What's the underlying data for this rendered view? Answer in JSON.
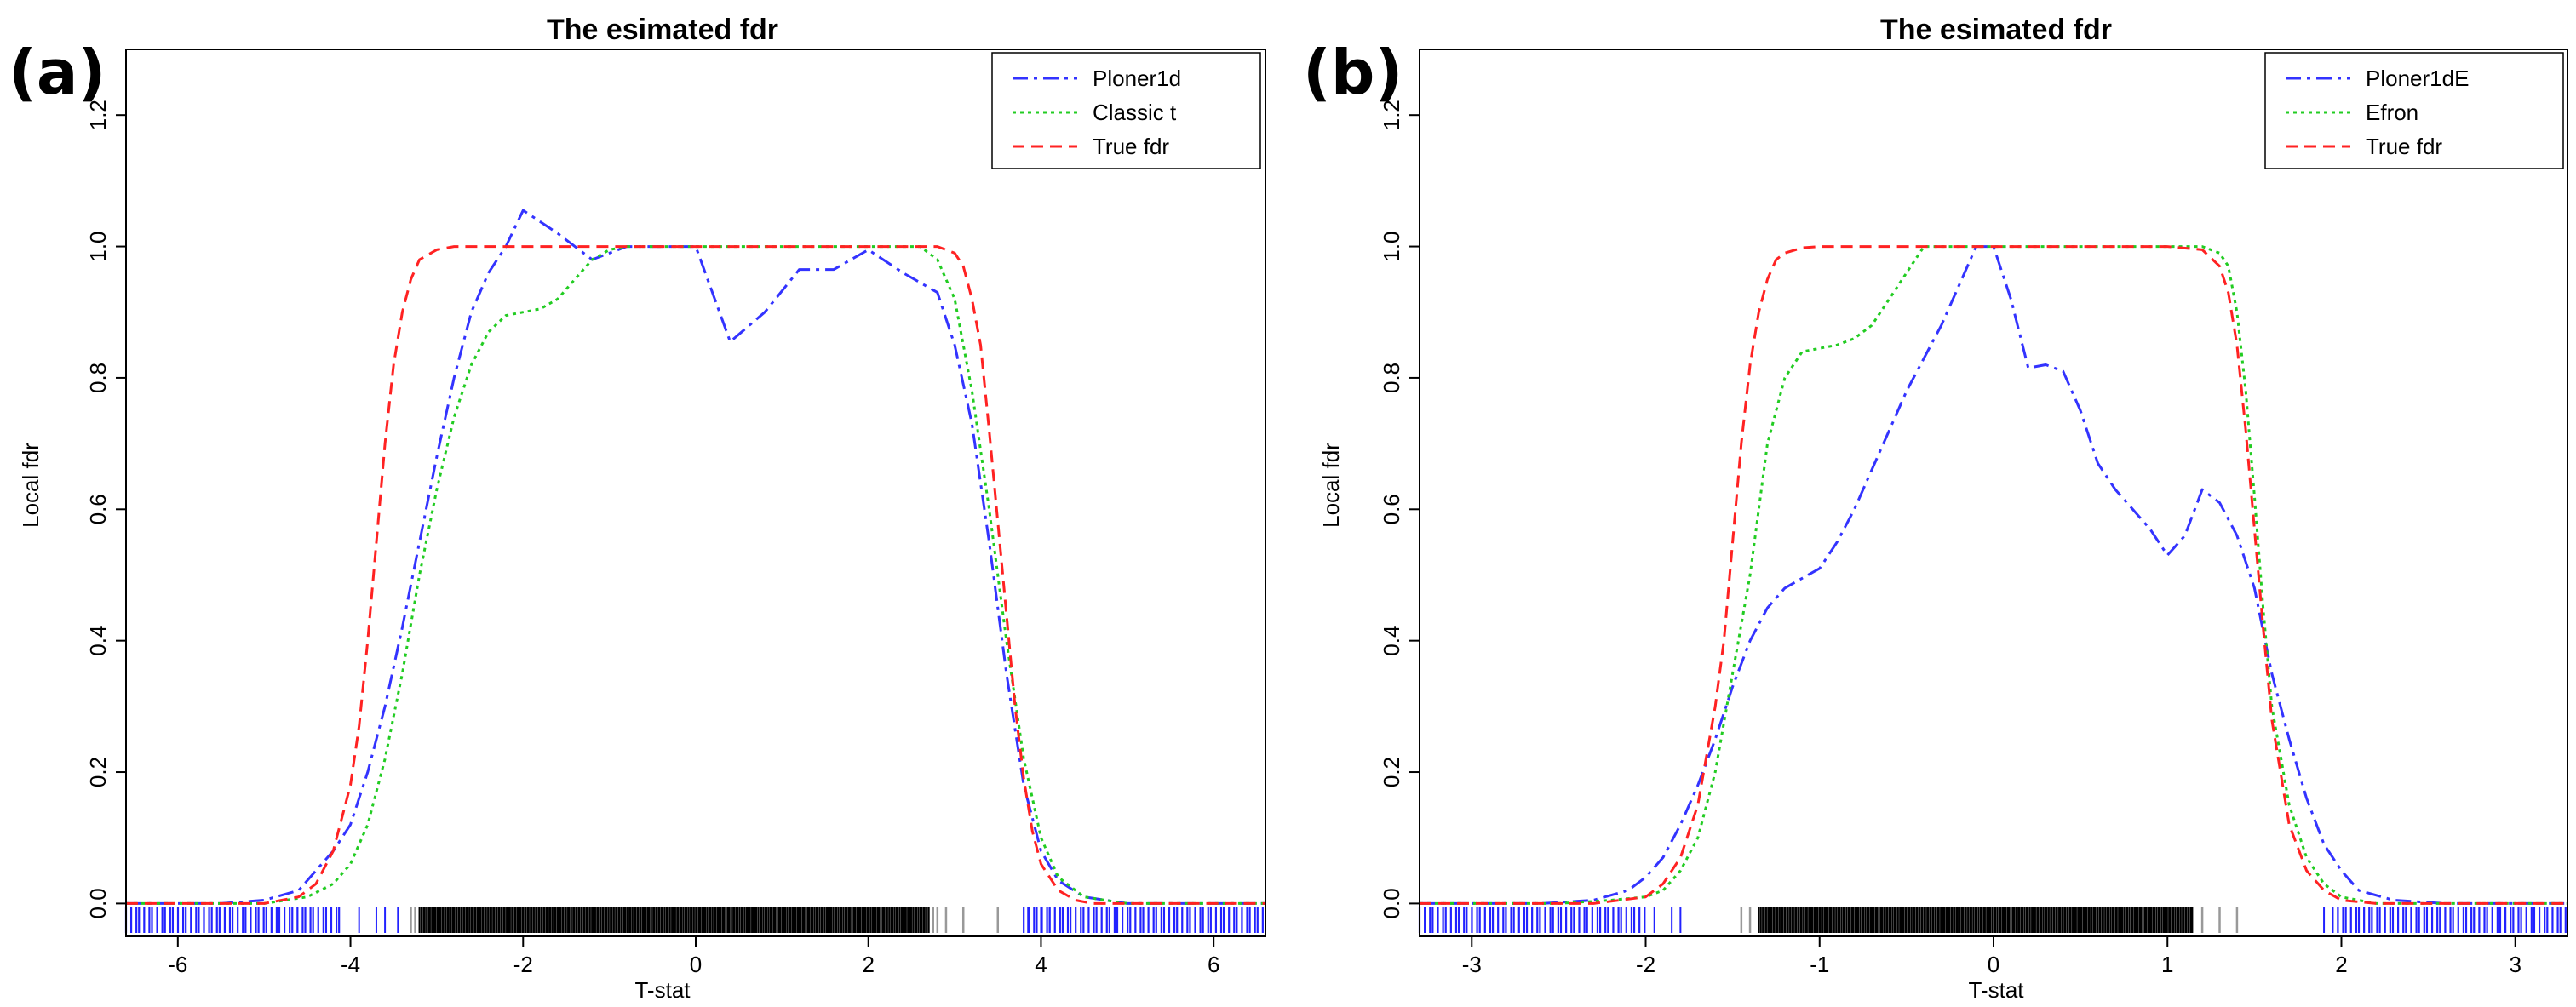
{
  "chart_data": [
    {
      "panel_label": "(a)",
      "type": "line",
      "title": "The esimated fdr",
      "xlabel": "T-stat",
      "ylabel": "Local fdr",
      "xlim": [
        -6.6,
        6.6
      ],
      "ylim": [
        -0.05,
        1.3
      ],
      "xticks": [
        -6,
        -4,
        -2,
        0,
        2,
        4,
        6
      ],
      "xtick_labels": [
        "-6",
        "-4",
        "-2",
        "0",
        "2",
        "4",
        "6"
      ],
      "yticks": [
        0.0,
        0.2,
        0.4,
        0.6,
        0.8,
        1.0,
        1.2
      ],
      "ytick_labels": [
        "0.0",
        "0.2",
        "0.4",
        "0.6",
        "0.8",
        "1.0",
        "1.2"
      ],
      "legend_position": "top-right",
      "series": [
        {
          "name": "Ploner1d",
          "color": "#3333ff",
          "style": "dashdot",
          "x": [
            -6.6,
            -5.5,
            -5.0,
            -4.6,
            -4.4,
            -4.2,
            -4.0,
            -3.8,
            -3.6,
            -3.4,
            -3.2,
            -3.0,
            -2.8,
            -2.6,
            -2.4,
            -2.2,
            -2.0,
            -1.6,
            -1.2,
            -0.8,
            -0.4,
            0.0,
            0.4,
            0.8,
            1.2,
            1.6,
            2.0,
            2.4,
            2.8,
            3.0,
            3.2,
            3.4,
            3.6,
            3.8,
            4.0,
            4.2,
            4.5,
            5.0,
            5.5,
            6.6
          ],
          "y": [
            0.0,
            0.0,
            0.005,
            0.02,
            0.05,
            0.08,
            0.12,
            0.2,
            0.3,
            0.42,
            0.55,
            0.68,
            0.8,
            0.9,
            0.96,
            1.0,
            1.055,
            1.02,
            0.98,
            1.0,
            1.0,
            1.0,
            0.855,
            0.9,
            0.965,
            0.965,
            0.995,
            0.96,
            0.93,
            0.85,
            0.73,
            0.55,
            0.35,
            0.18,
            0.08,
            0.035,
            0.01,
            0.0,
            0.0,
            0.0
          ]
        },
        {
          "name": "Classic t",
          "color": "#22cc22",
          "style": "dotted",
          "x": [
            -6.6,
            -5.0,
            -4.5,
            -4.2,
            -4.0,
            -3.8,
            -3.6,
            -3.4,
            -3.2,
            -3.0,
            -2.8,
            -2.6,
            -2.4,
            -2.2,
            -2.0,
            -1.8,
            -1.6,
            -1.4,
            -1.2,
            -1.0,
            -0.8,
            0.0,
            1.0,
            2.0,
            2.6,
            2.8,
            3.0,
            3.2,
            3.4,
            3.6,
            3.8,
            4.0,
            4.2,
            4.5,
            5.0,
            6.6
          ],
          "y": [
            0.0,
            0.0,
            0.01,
            0.03,
            0.06,
            0.12,
            0.22,
            0.35,
            0.5,
            0.63,
            0.74,
            0.82,
            0.87,
            0.895,
            0.9,
            0.905,
            0.92,
            0.95,
            0.98,
            0.995,
            1.0,
            1.0,
            1.0,
            1.0,
            1.0,
            0.98,
            0.92,
            0.78,
            0.6,
            0.4,
            0.22,
            0.1,
            0.04,
            0.01,
            0.0,
            0.0
          ]
        },
        {
          "name": "True fdr",
          "color": "#ff2222",
          "style": "dashed",
          "x": [
            -6.6,
            -5.0,
            -4.6,
            -4.4,
            -4.2,
            -4.0,
            -3.9,
            -3.8,
            -3.7,
            -3.6,
            -3.5,
            -3.4,
            -3.3,
            -3.2,
            -3.0,
            -2.8,
            0.0,
            2.8,
            3.0,
            3.1,
            3.2,
            3.3,
            3.4,
            3.5,
            3.6,
            3.7,
            3.8,
            3.9,
            4.0,
            4.2,
            4.4,
            4.6,
            5.0,
            6.6
          ],
          "y": [
            0.0,
            0.0,
            0.01,
            0.03,
            0.08,
            0.18,
            0.27,
            0.4,
            0.55,
            0.7,
            0.82,
            0.9,
            0.95,
            0.98,
            0.995,
            1.0,
            1.0,
            1.0,
            0.99,
            0.97,
            0.92,
            0.85,
            0.72,
            0.58,
            0.44,
            0.3,
            0.19,
            0.11,
            0.06,
            0.02,
            0.005,
            0.0,
            0.0,
            0.0
          ]
        }
      ],
      "rug": {
        "colors": {
          "outer": "#2222ff",
          "inner": "#000000",
          "edge": "#999999"
        },
        "outer_left": [
          -6.6,
          -4.1
        ],
        "outer_right": [
          3.8,
          6.6
        ],
        "sparse_outer": [
          -3.9,
          -3.7,
          -3.6,
          -3.45
        ],
        "sparse_outer_right": [
          3.85,
          3.95,
          4.0,
          4.1
        ],
        "inner_range": [
          -3.2,
          2.7
        ],
        "edge_ticks": [
          -3.3,
          -3.25,
          2.75,
          2.8,
          2.9,
          3.1,
          3.5
        ]
      }
    },
    {
      "panel_label": "(b)",
      "type": "line",
      "title": "The esimated fdr",
      "xlabel": "T-stat",
      "ylabel": "Local fdr",
      "xlim": [
        -3.3,
        3.3
      ],
      "ylim": [
        -0.05,
        1.3
      ],
      "xticks": [
        -3,
        -2,
        -1,
        0,
        1,
        2,
        3
      ],
      "xtick_labels": [
        "-3",
        "-2",
        "-1",
        "0",
        "1",
        "2",
        "3"
      ],
      "yticks": [
        0.0,
        0.2,
        0.4,
        0.6,
        0.8,
        1.0,
        1.2
      ],
      "ytick_labels": [
        "0.0",
        "0.2",
        "0.4",
        "0.6",
        "0.8",
        "1.0",
        "1.2"
      ],
      "legend_position": "top-right",
      "series": [
        {
          "name": "Ploner1dE",
          "color": "#3333ff",
          "style": "dashdot",
          "x": [
            -3.3,
            -2.6,
            -2.3,
            -2.1,
            -2.0,
            -1.9,
            -1.8,
            -1.7,
            -1.6,
            -1.5,
            -1.4,
            -1.3,
            -1.2,
            -1.1,
            -1.0,
            -0.9,
            -0.8,
            -0.7,
            -0.6,
            -0.5,
            -0.4,
            -0.3,
            -0.2,
            -0.1,
            0.0,
            0.1,
            0.2,
            0.3,
            0.4,
            0.5,
            0.6,
            0.7,
            0.8,
            0.9,
            1.0,
            1.1,
            1.2,
            1.3,
            1.4,
            1.5,
            1.6,
            1.7,
            1.8,
            1.9,
            2.0,
            2.1,
            2.3,
            2.6,
            3.3
          ],
          "y": [
            0.0,
            0.0,
            0.005,
            0.02,
            0.04,
            0.07,
            0.12,
            0.18,
            0.25,
            0.33,
            0.4,
            0.45,
            0.48,
            0.495,
            0.51,
            0.55,
            0.6,
            0.66,
            0.72,
            0.78,
            0.83,
            0.88,
            0.94,
            1.0,
            1.0,
            0.92,
            0.815,
            0.82,
            0.81,
            0.75,
            0.67,
            0.63,
            0.6,
            0.57,
            0.53,
            0.56,
            0.63,
            0.61,
            0.56,
            0.48,
            0.35,
            0.25,
            0.16,
            0.09,
            0.05,
            0.02,
            0.005,
            0.0,
            0.0
          ]
        },
        {
          "name": "Efron",
          "color": "#22cc22",
          "style": "dotted",
          "x": [
            -3.3,
            -2.5,
            -2.2,
            -2.0,
            -1.9,
            -1.8,
            -1.7,
            -1.6,
            -1.5,
            -1.4,
            -1.3,
            -1.2,
            -1.1,
            -1.0,
            -0.9,
            -0.8,
            -0.7,
            -0.6,
            -0.5,
            -0.4,
            -0.3,
            0.0,
            0.5,
            1.0,
            1.2,
            1.3,
            1.35,
            1.4,
            1.45,
            1.5,
            1.55,
            1.6,
            1.7,
            1.8,
            1.9,
            2.0,
            2.2,
            3.3
          ],
          "y": [
            0.0,
            0.0,
            0.005,
            0.01,
            0.02,
            0.05,
            0.1,
            0.2,
            0.35,
            0.5,
            0.7,
            0.8,
            0.84,
            0.845,
            0.85,
            0.86,
            0.88,
            0.92,
            0.96,
            1.0,
            1.0,
            1.0,
            1.0,
            1.0,
            1.0,
            0.99,
            0.97,
            0.9,
            0.78,
            0.62,
            0.45,
            0.3,
            0.15,
            0.07,
            0.03,
            0.01,
            0.0,
            0.0
          ]
        },
        {
          "name": "True fdr",
          "color": "#ff2222",
          "style": "dashed",
          "x": [
            -3.3,
            -2.3,
            -2.0,
            -1.9,
            -1.8,
            -1.7,
            -1.6,
            -1.55,
            -1.5,
            -1.45,
            -1.4,
            -1.35,
            -1.3,
            -1.25,
            -1.2,
            -1.1,
            -1.0,
            0.0,
            1.0,
            1.2,
            1.3,
            1.35,
            1.4,
            1.45,
            1.5,
            1.55,
            1.6,
            1.7,
            1.8,
            1.9,
            2.0,
            2.2,
            3.3
          ],
          "y": [
            0.0,
            0.0,
            0.01,
            0.03,
            0.07,
            0.15,
            0.3,
            0.4,
            0.55,
            0.7,
            0.82,
            0.9,
            0.95,
            0.98,
            0.99,
            0.998,
            1.0,
            1.0,
            1.0,
            0.995,
            0.97,
            0.93,
            0.85,
            0.72,
            0.57,
            0.42,
            0.28,
            0.12,
            0.05,
            0.02,
            0.005,
            0.0,
            0.0
          ]
        }
      ],
      "rug": {
        "colors": {
          "outer": "#2222ff",
          "inner": "#000000",
          "edge": "#999999"
        },
        "outer_left": [
          -3.3,
          -2.0
        ],
        "outer_right": [
          1.95,
          3.3
        ],
        "sparse_outer": [
          -1.95,
          -1.85,
          -1.8
        ],
        "sparse_outer_right": [
          1.9,
          1.95
        ],
        "inner_range": [
          -1.35,
          1.15
        ],
        "edge_ticks": [
          -1.45,
          -1.4,
          1.2,
          1.3,
          1.4
        ]
      }
    }
  ]
}
